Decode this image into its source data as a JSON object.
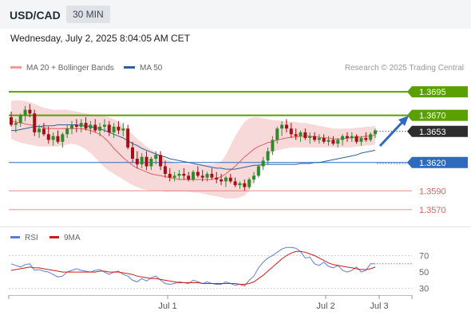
{
  "header": {
    "symbol": "USD/CAD",
    "timeframe": "30 MIN",
    "datetime": "Wednesday, July 2, 2025 8:04:05 AM CET"
  },
  "legend": {
    "ma20_label": "MA 20 + Bollinger Bands",
    "ma50_label": "MA 50",
    "credit": "Research © 2025 Trading Central",
    "rsi_label": "RSI",
    "rsi_ma_label": "9MA"
  },
  "colors": {
    "up": "#2e8b2e",
    "down": "#a50f15",
    "ma20": "#e06060",
    "ma50": "#2f5f9e",
    "band_fill": "#f6cccc",
    "resistance": "#5aa000",
    "support": "#2e6bbd",
    "minor_support": "#e35d5d",
    "current": "#2d2d2d",
    "arrow": "#2e6bbd",
    "rsi": "#5b7fd6",
    "rsi_ma": "#d11a1a"
  },
  "chart_data": [
    {
      "type": "candlestick",
      "title": "USD/CAD 30 MIN",
      "ylim": [
        1.3553,
        1.3712
      ],
      "x_ticks": [
        "Jul 1",
        "Jul 2",
        "Jul 3"
      ],
      "levels": [
        {
          "value": "1.3695",
          "kind": "resistance"
        },
        {
          "value": "1.3670",
          "kind": "resistance"
        },
        {
          "value": "1.3653",
          "kind": "current"
        },
        {
          "value": "1.3620",
          "kind": "support"
        },
        {
          "value": "1.3590",
          "kind": "minor_support"
        },
        {
          "value": "1.3570",
          "kind": "minor_support"
        }
      ],
      "candles": [
        [
          1.3668,
          1.3674,
          1.3658,
          1.366
        ],
        [
          1.366,
          1.3666,
          1.3652,
          1.3662
        ],
        [
          1.3662,
          1.3672,
          1.3658,
          1.367
        ],
        [
          1.367,
          1.368,
          1.3664,
          1.3676
        ],
        [
          1.3676,
          1.3682,
          1.3668,
          1.3672
        ],
        [
          1.3672,
          1.3676,
          1.3648,
          1.3652
        ],
        [
          1.3652,
          1.366,
          1.3646,
          1.3656
        ],
        [
          1.3656,
          1.3662,
          1.3648,
          1.365
        ],
        [
          1.365,
          1.3658,
          1.364,
          1.3644
        ],
        [
          1.3644,
          1.3652,
          1.3638,
          1.3648
        ],
        [
          1.3648,
          1.3654,
          1.364,
          1.3642
        ],
        [
          1.3642,
          1.3652,
          1.3636,
          1.365
        ],
        [
          1.365,
          1.366,
          1.3646,
          1.3656
        ],
        [
          1.3656,
          1.3664,
          1.365,
          1.366
        ],
        [
          1.366,
          1.3666,
          1.3652,
          1.3658
        ],
        [
          1.3658,
          1.3666,
          1.3652,
          1.3662
        ],
        [
          1.3662,
          1.3668,
          1.3654,
          1.3656
        ],
        [
          1.3656,
          1.3664,
          1.365,
          1.366
        ],
        [
          1.366,
          1.3666,
          1.3652,
          1.3654
        ],
        [
          1.3654,
          1.3662,
          1.3648,
          1.3658
        ],
        [
          1.3658,
          1.3666,
          1.3652,
          1.366
        ],
        [
          1.366,
          1.3664,
          1.3648,
          1.3652
        ],
        [
          1.3652,
          1.3662,
          1.3646,
          1.3658
        ],
        [
          1.3658,
          1.3664,
          1.365,
          1.3654
        ],
        [
          1.3654,
          1.3662,
          1.3648,
          1.3656
        ],
        [
          1.3656,
          1.366,
          1.3634,
          1.3636
        ],
        [
          1.3636,
          1.3642,
          1.362,
          1.3624
        ],
        [
          1.3624,
          1.3632,
          1.3614,
          1.3618
        ],
        [
          1.3618,
          1.363,
          1.3614,
          1.3626
        ],
        [
          1.3626,
          1.3632,
          1.3612,
          1.3616
        ],
        [
          1.3616,
          1.3626,
          1.3612,
          1.3624
        ],
        [
          1.3624,
          1.3632,
          1.3618,
          1.3628
        ],
        [
          1.3628,
          1.3632,
          1.3612,
          1.3616
        ],
        [
          1.3616,
          1.3622,
          1.3604,
          1.3608
        ],
        [
          1.3608,
          1.3614,
          1.36,
          1.3604
        ],
        [
          1.3604,
          1.361,
          1.36,
          1.3606
        ],
        [
          1.3606,
          1.3612,
          1.3602,
          1.3608
        ],
        [
          1.3608,
          1.3614,
          1.3602,
          1.3606
        ],
        [
          1.3606,
          1.361,
          1.36,
          1.3602
        ],
        [
          1.3602,
          1.3612,
          1.36,
          1.361
        ],
        [
          1.361,
          1.3616,
          1.3604,
          1.3606
        ],
        [
          1.3606,
          1.3612,
          1.36,
          1.3604
        ],
        [
          1.3604,
          1.361,
          1.36,
          1.3608
        ],
        [
          1.3608,
          1.3614,
          1.3602,
          1.3604
        ],
        [
          1.3604,
          1.361,
          1.3598,
          1.3602
        ],
        [
          1.3602,
          1.3608,
          1.3596,
          1.36
        ],
        [
          1.36,
          1.3606,
          1.3594,
          1.3604
        ],
        [
          1.3604,
          1.3608,
          1.3598,
          1.36
        ],
        [
          1.36,
          1.3604,
          1.3594,
          1.3596
        ],
        [
          1.3596,
          1.36,
          1.3592,
          1.3598
        ],
        [
          1.3598,
          1.3602,
          1.359,
          1.3594
        ],
        [
          1.3594,
          1.3604,
          1.3592,
          1.3602
        ],
        [
          1.3602,
          1.361,
          1.3598,
          1.3606
        ],
        [
          1.3606,
          1.3618,
          1.3604,
          1.3616
        ],
        [
          1.3616,
          1.3626,
          1.3612,
          1.3622
        ],
        [
          1.3622,
          1.3636,
          1.3618,
          1.3632
        ],
        [
          1.3632,
          1.3648,
          1.3628,
          1.3644
        ],
        [
          1.3644,
          1.3658,
          1.364,
          1.3656
        ],
        [
          1.3656,
          1.3664,
          1.3648,
          1.366
        ],
        [
          1.366,
          1.3666,
          1.3652,
          1.3656
        ],
        [
          1.3656,
          1.3662,
          1.3646,
          1.365
        ],
        [
          1.365,
          1.3656,
          1.3644,
          1.3648
        ],
        [
          1.3648,
          1.3654,
          1.3642,
          1.3652
        ],
        [
          1.3652,
          1.3656,
          1.3644,
          1.3646
        ],
        [
          1.3646,
          1.3652,
          1.364,
          1.3648
        ],
        [
          1.3648,
          1.3652,
          1.3642,
          1.3644
        ],
        [
          1.3644,
          1.365,
          1.364,
          1.3646
        ],
        [
          1.3646,
          1.365,
          1.364,
          1.3642
        ],
        [
          1.3642,
          1.3648,
          1.3638,
          1.3644
        ],
        [
          1.3644,
          1.3648,
          1.3638,
          1.364
        ],
        [
          1.364,
          1.3646,
          1.3636,
          1.3644
        ],
        [
          1.3644,
          1.365,
          1.3638,
          1.3648
        ],
        [
          1.3648,
          1.3652,
          1.3642,
          1.3646
        ],
        [
          1.3646,
          1.3652,
          1.3642,
          1.3648
        ],
        [
          1.3648,
          1.365,
          1.364,
          1.3642
        ],
        [
          1.3642,
          1.3648,
          1.3638,
          1.3646
        ],
        [
          1.3646,
          1.3652,
          1.3642,
          1.3644
        ],
        [
          1.3644,
          1.3652,
          1.3642,
          1.365
        ],
        [
          1.365,
          1.3656,
          1.3646,
          1.3654
        ]
      ],
      "ma20": [
        1.3664,
        1.3663,
        1.3662,
        1.3661,
        1.366,
        1.3659,
        1.3658,
        1.3657,
        1.3656,
        1.3656,
        1.3656,
        1.3656,
        1.3656,
        1.3656,
        1.3656,
        1.3656,
        1.3655,
        1.3654,
        1.3652,
        1.365,
        1.3646,
        1.3641,
        1.3635,
        1.363,
        1.3625,
        1.3621,
        1.3617,
        1.3614,
        1.3612,
        1.361,
        1.3608,
        1.3607,
        1.3606,
        1.3605,
        1.3604,
        1.3603,
        1.3602,
        1.3602,
        1.3602,
        1.3602,
        1.3602,
        1.3602,
        1.3602,
        1.3602,
        1.3603,
        1.3605,
        1.3608,
        1.3612,
        1.3616,
        1.3621,
        1.3626,
        1.363,
        1.3634,
        1.3637,
        1.3639,
        1.3641,
        1.3642,
        1.3644,
        1.3645,
        1.3646,
        1.3647,
        1.3647,
        1.3648,
        1.3648,
        1.3648,
        1.3647,
        1.3647,
        1.3646,
        1.3646,
        1.3645,
        1.3645,
        1.3645,
        1.3646,
        1.3646,
        1.3647,
        1.3647,
        1.3648,
        1.3648,
        1.3649
      ],
      "bb_upper": [
        1.3685,
        1.3686,
        1.3686,
        1.3685,
        1.3684,
        1.3682,
        1.368,
        1.3678,
        1.3677,
        1.3676,
        1.3676,
        1.3676,
        1.3676,
        1.3675,
        1.3674,
        1.3673,
        1.3672,
        1.3671,
        1.367,
        1.367,
        1.3669,
        1.3668,
        1.3666,
        1.3663,
        1.3659,
        1.3654,
        1.365,
        1.3645,
        1.3641,
        1.3637,
        1.3634,
        1.3631,
        1.3628,
        1.3624,
        1.3622,
        1.362,
        1.3619,
        1.3618,
        1.3618,
        1.3618,
        1.3618,
        1.3618,
        1.3618,
        1.3618,
        1.3619,
        1.3621,
        1.3628,
        1.3638,
        1.3648,
        1.3656,
        1.3663,
        1.3667,
        1.3668,
        1.3668,
        1.3667,
        1.3666,
        1.3665,
        1.3665,
        1.3664,
        1.3664,
        1.3663,
        1.3663,
        1.3662,
        1.3662,
        1.3661,
        1.366,
        1.3659,
        1.3658,
        1.3657,
        1.3656,
        1.3656,
        1.3656,
        1.3656,
        1.3656,
        1.3657,
        1.3657,
        1.3658,
        1.3658,
        1.3659
      ],
      "bb_lower": [
        1.3645,
        1.3643,
        1.3641,
        1.364,
        1.3639,
        1.3638,
        1.3637,
        1.3637,
        1.3637,
        1.3637,
        1.3637,
        1.3638,
        1.3639,
        1.364,
        1.3639,
        1.3637,
        1.3634,
        1.363,
        1.3625,
        1.362,
        1.3615,
        1.3611,
        1.3608,
        1.3605,
        1.3602,
        1.3599,
        1.3596,
        1.3594,
        1.3592,
        1.3591,
        1.359,
        1.359,
        1.359,
        1.3589,
        1.3589,
        1.3589,
        1.3589,
        1.3589,
        1.3589,
        1.3588,
        1.3588,
        1.3587,
        1.3586,
        1.3585,
        1.3584,
        1.3583,
        1.3582,
        1.3582,
        1.3582,
        1.3583,
        1.3585,
        1.359,
        1.36,
        1.361,
        1.362,
        1.3627,
        1.3631,
        1.3633,
        1.3634,
        1.3635,
        1.3636,
        1.3636,
        1.3636,
        1.3636,
        1.3636,
        1.3636,
        1.3636,
        1.3636,
        1.3636,
        1.3636,
        1.3636,
        1.3636,
        1.3636,
        1.3636,
        1.3637,
        1.3637,
        1.3638,
        1.3638,
        1.3639
      ],
      "ma50": [
        1.3654,
        1.3654,
        1.3655,
        1.3656,
        1.3657,
        1.3658,
        1.3658,
        1.3659,
        1.3659,
        1.3659,
        1.366,
        1.366,
        1.366,
        1.366,
        1.366,
        1.3659,
        1.3659,
        1.3658,
        1.3657,
        1.3656,
        1.3654,
        1.3652,
        1.365,
        1.3648,
        1.3646,
        1.3643,
        1.364,
        1.3638,
        1.3635,
        1.3633,
        1.3631,
        1.3629,
        1.3627,
        1.3626,
        1.3624,
        1.3623,
        1.3622,
        1.3621,
        1.362,
        1.3619,
        1.3618,
        1.3617,
        1.3616,
        1.3615,
        1.3614,
        1.3614,
        1.3613,
        1.3613,
        1.3613,
        1.3614,
        1.3615,
        1.3616,
        1.3617,
        1.3617,
        1.3618,
        1.3618,
        1.3618,
        1.3618,
        1.3618,
        1.3618,
        1.3618,
        1.3618,
        1.3619,
        1.3619,
        1.3619,
        1.362,
        1.362,
        1.3621,
        1.3622,
        1.3623,
        1.3624,
        1.3625,
        1.3626,
        1.3627,
        1.3628,
        1.363,
        1.3631,
        1.3632,
        1.3633
      ]
    },
    {
      "type": "line",
      "title": "RSI",
      "ylim": [
        20,
        85
      ],
      "y_ticks": [
        "70",
        "50",
        "30"
      ],
      "series": [
        {
          "name": "RSI",
          "values": [
            60,
            58,
            56,
            59,
            60,
            52,
            53,
            51,
            50,
            47,
            44,
            45,
            50,
            52,
            54,
            52,
            51,
            50,
            52,
            53,
            50,
            47,
            50,
            51,
            47,
            45,
            40,
            38,
            42,
            39,
            43,
            45,
            40,
            36,
            35,
            36,
            38,
            37,
            36,
            40,
            38,
            36,
            38,
            36,
            35,
            35,
            38,
            36,
            34,
            35,
            33,
            40,
            45,
            55,
            62,
            67,
            70,
            74,
            78,
            80,
            80,
            79,
            75,
            67,
            68,
            60,
            58,
            62,
            57,
            55,
            58,
            52,
            50,
            52,
            56,
            50,
            52,
            60,
            60
          ]
        },
        {
          "name": "9MA",
          "values": [
            52,
            53,
            54,
            55,
            56,
            55,
            55,
            54,
            53,
            52,
            51,
            50,
            50,
            50,
            50,
            50,
            50,
            50,
            50,
            51,
            51,
            50,
            50,
            50,
            49,
            48,
            47,
            45,
            44,
            43,
            42,
            42,
            41,
            40,
            39,
            38,
            37,
            37,
            37,
            37,
            37,
            36,
            36,
            36,
            36,
            36,
            36,
            36,
            36,
            35,
            35,
            36,
            38,
            42,
            46,
            51,
            56,
            61,
            66,
            70,
            73,
            75,
            75,
            74,
            72,
            70,
            67,
            64,
            61,
            59,
            58,
            57,
            56,
            55,
            54,
            53,
            53,
            54,
            56
          ]
        }
      ]
    }
  ]
}
